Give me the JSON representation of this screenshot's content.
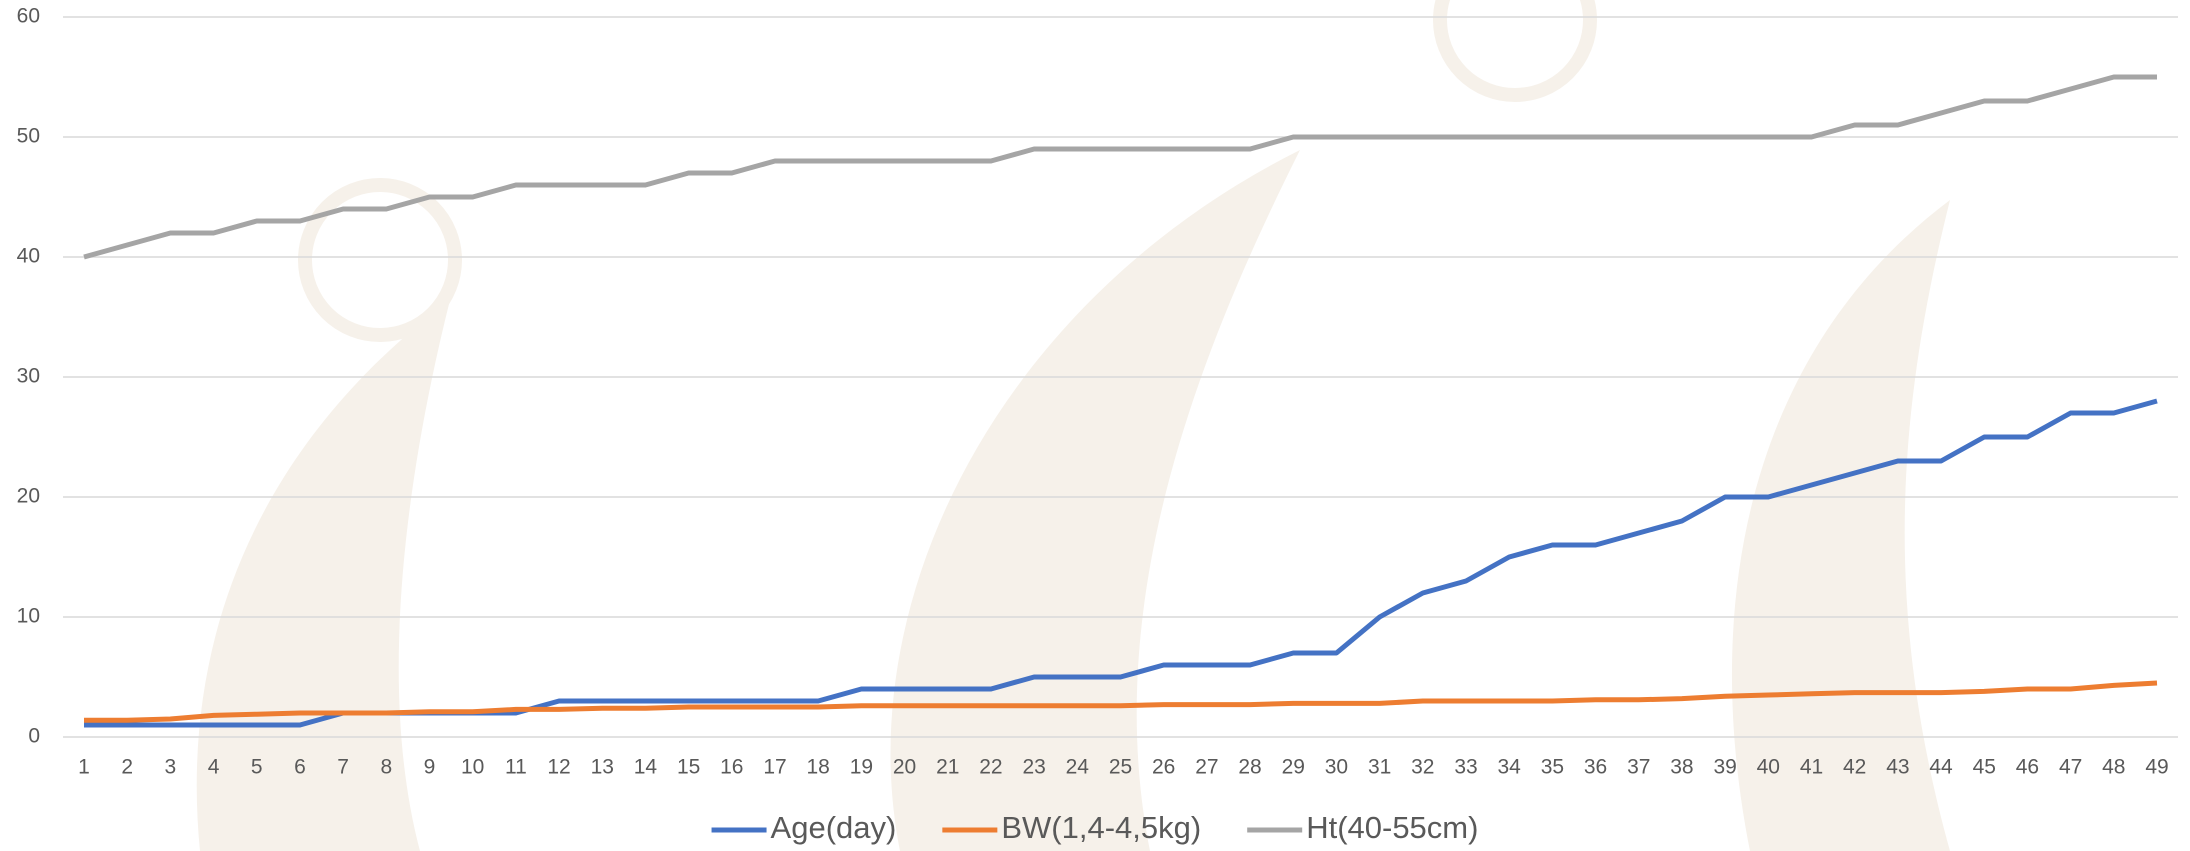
{
  "chart_data": {
    "type": "line",
    "categories": [
      "1",
      "2",
      "3",
      "4",
      "5",
      "6",
      "7",
      "8",
      "9",
      "10",
      "11",
      "12",
      "13",
      "14",
      "15",
      "16",
      "17",
      "18",
      "19",
      "20",
      "21",
      "22",
      "23",
      "24",
      "25",
      "26",
      "27",
      "28",
      "29",
      "30",
      "31",
      "32",
      "33",
      "34",
      "35",
      "36",
      "37",
      "38",
      "39",
      "40",
      "41",
      "42",
      "43",
      "44",
      "45",
      "46",
      "47",
      "48",
      "49"
    ],
    "series": [
      {
        "name": "Age(day)",
        "color": "#4472c4",
        "values": [
          1,
          1,
          1,
          1,
          1,
          1,
          2,
          2,
          2,
          2,
          2,
          3,
          3,
          3,
          3,
          3,
          3,
          3,
          4,
          4,
          4,
          4,
          5,
          5,
          5,
          6,
          6,
          6,
          7,
          7,
          10,
          12,
          13,
          15,
          16,
          16,
          17,
          18,
          20,
          20,
          21,
          22,
          23,
          23,
          25,
          25,
          27,
          27,
          28
        ]
      },
      {
        "name": "BW(1,4-4,5kg)",
        "color": "#ed7d31",
        "values": [
          1.4,
          1.4,
          1.5,
          1.8,
          1.9,
          2,
          2,
          2,
          2.1,
          2.1,
          2.3,
          2.3,
          2.4,
          2.4,
          2.5,
          2.5,
          2.5,
          2.5,
          2.6,
          2.6,
          2.6,
          2.6,
          2.6,
          2.6,
          2.6,
          2.7,
          2.7,
          2.7,
          2.8,
          2.8,
          2.8,
          3,
          3,
          3,
          3,
          3.1,
          3.1,
          3.2,
          3.4,
          3.5,
          3.6,
          3.7,
          3.7,
          3.7,
          3.8,
          4,
          4,
          4.3,
          4.5
        ]
      },
      {
        "name": "Ht(40-55cm)",
        "color": "#a5a5a5",
        "values": [
          40,
          41,
          42,
          42,
          43,
          43,
          44,
          44,
          45,
          45,
          46,
          46,
          46,
          46,
          47,
          47,
          48,
          48,
          48,
          48,
          48,
          48,
          49,
          49,
          49,
          49,
          49,
          49,
          50,
          50,
          50,
          50,
          50,
          50,
          50,
          50,
          50,
          50,
          50,
          50,
          50,
          51,
          51,
          52,
          53,
          53,
          54,
          55,
          55
        ]
      }
    ],
    "ylim": [
      0,
      60
    ],
    "yticks": [
      0,
      10,
      20,
      30,
      40,
      50,
      60
    ],
    "grid": true,
    "legend": "bottom"
  }
}
